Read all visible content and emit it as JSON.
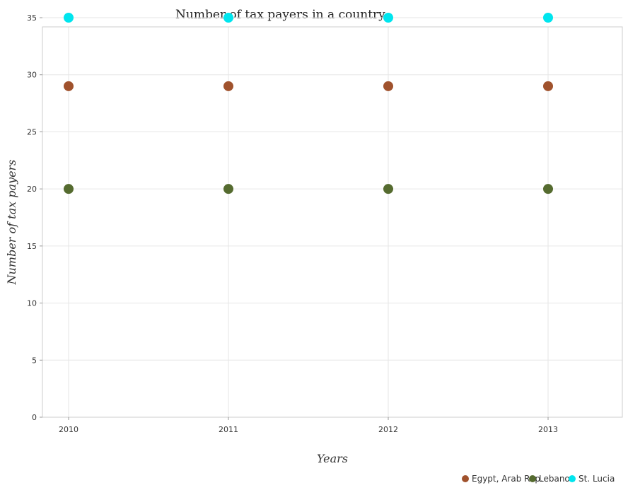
{
  "chart_data": {
    "type": "scatter",
    "title": "Number of tax payers in a country",
    "xlabel": "Years",
    "ylabel": "Number of tax payers",
    "categories": [
      "2010",
      "2011",
      "2012",
      "2013"
    ],
    "ylim": [
      0,
      35
    ],
    "yticks": [
      0,
      5,
      10,
      15,
      20,
      25,
      30,
      35
    ],
    "grid": true,
    "legend_position": "bottom-right",
    "series": [
      {
        "name": "Egypt, Arab Rep.",
        "color": "#a0522d",
        "values": [
          29,
          29,
          29,
          29
        ]
      },
      {
        "name": "Lebanon",
        "color": "#556b2f",
        "values": [
          20,
          20,
          20,
          20
        ]
      },
      {
        "name": "St. Lucia",
        "color": "#00e5ee",
        "values": [
          35,
          35,
          35,
          35
        ]
      }
    ]
  }
}
